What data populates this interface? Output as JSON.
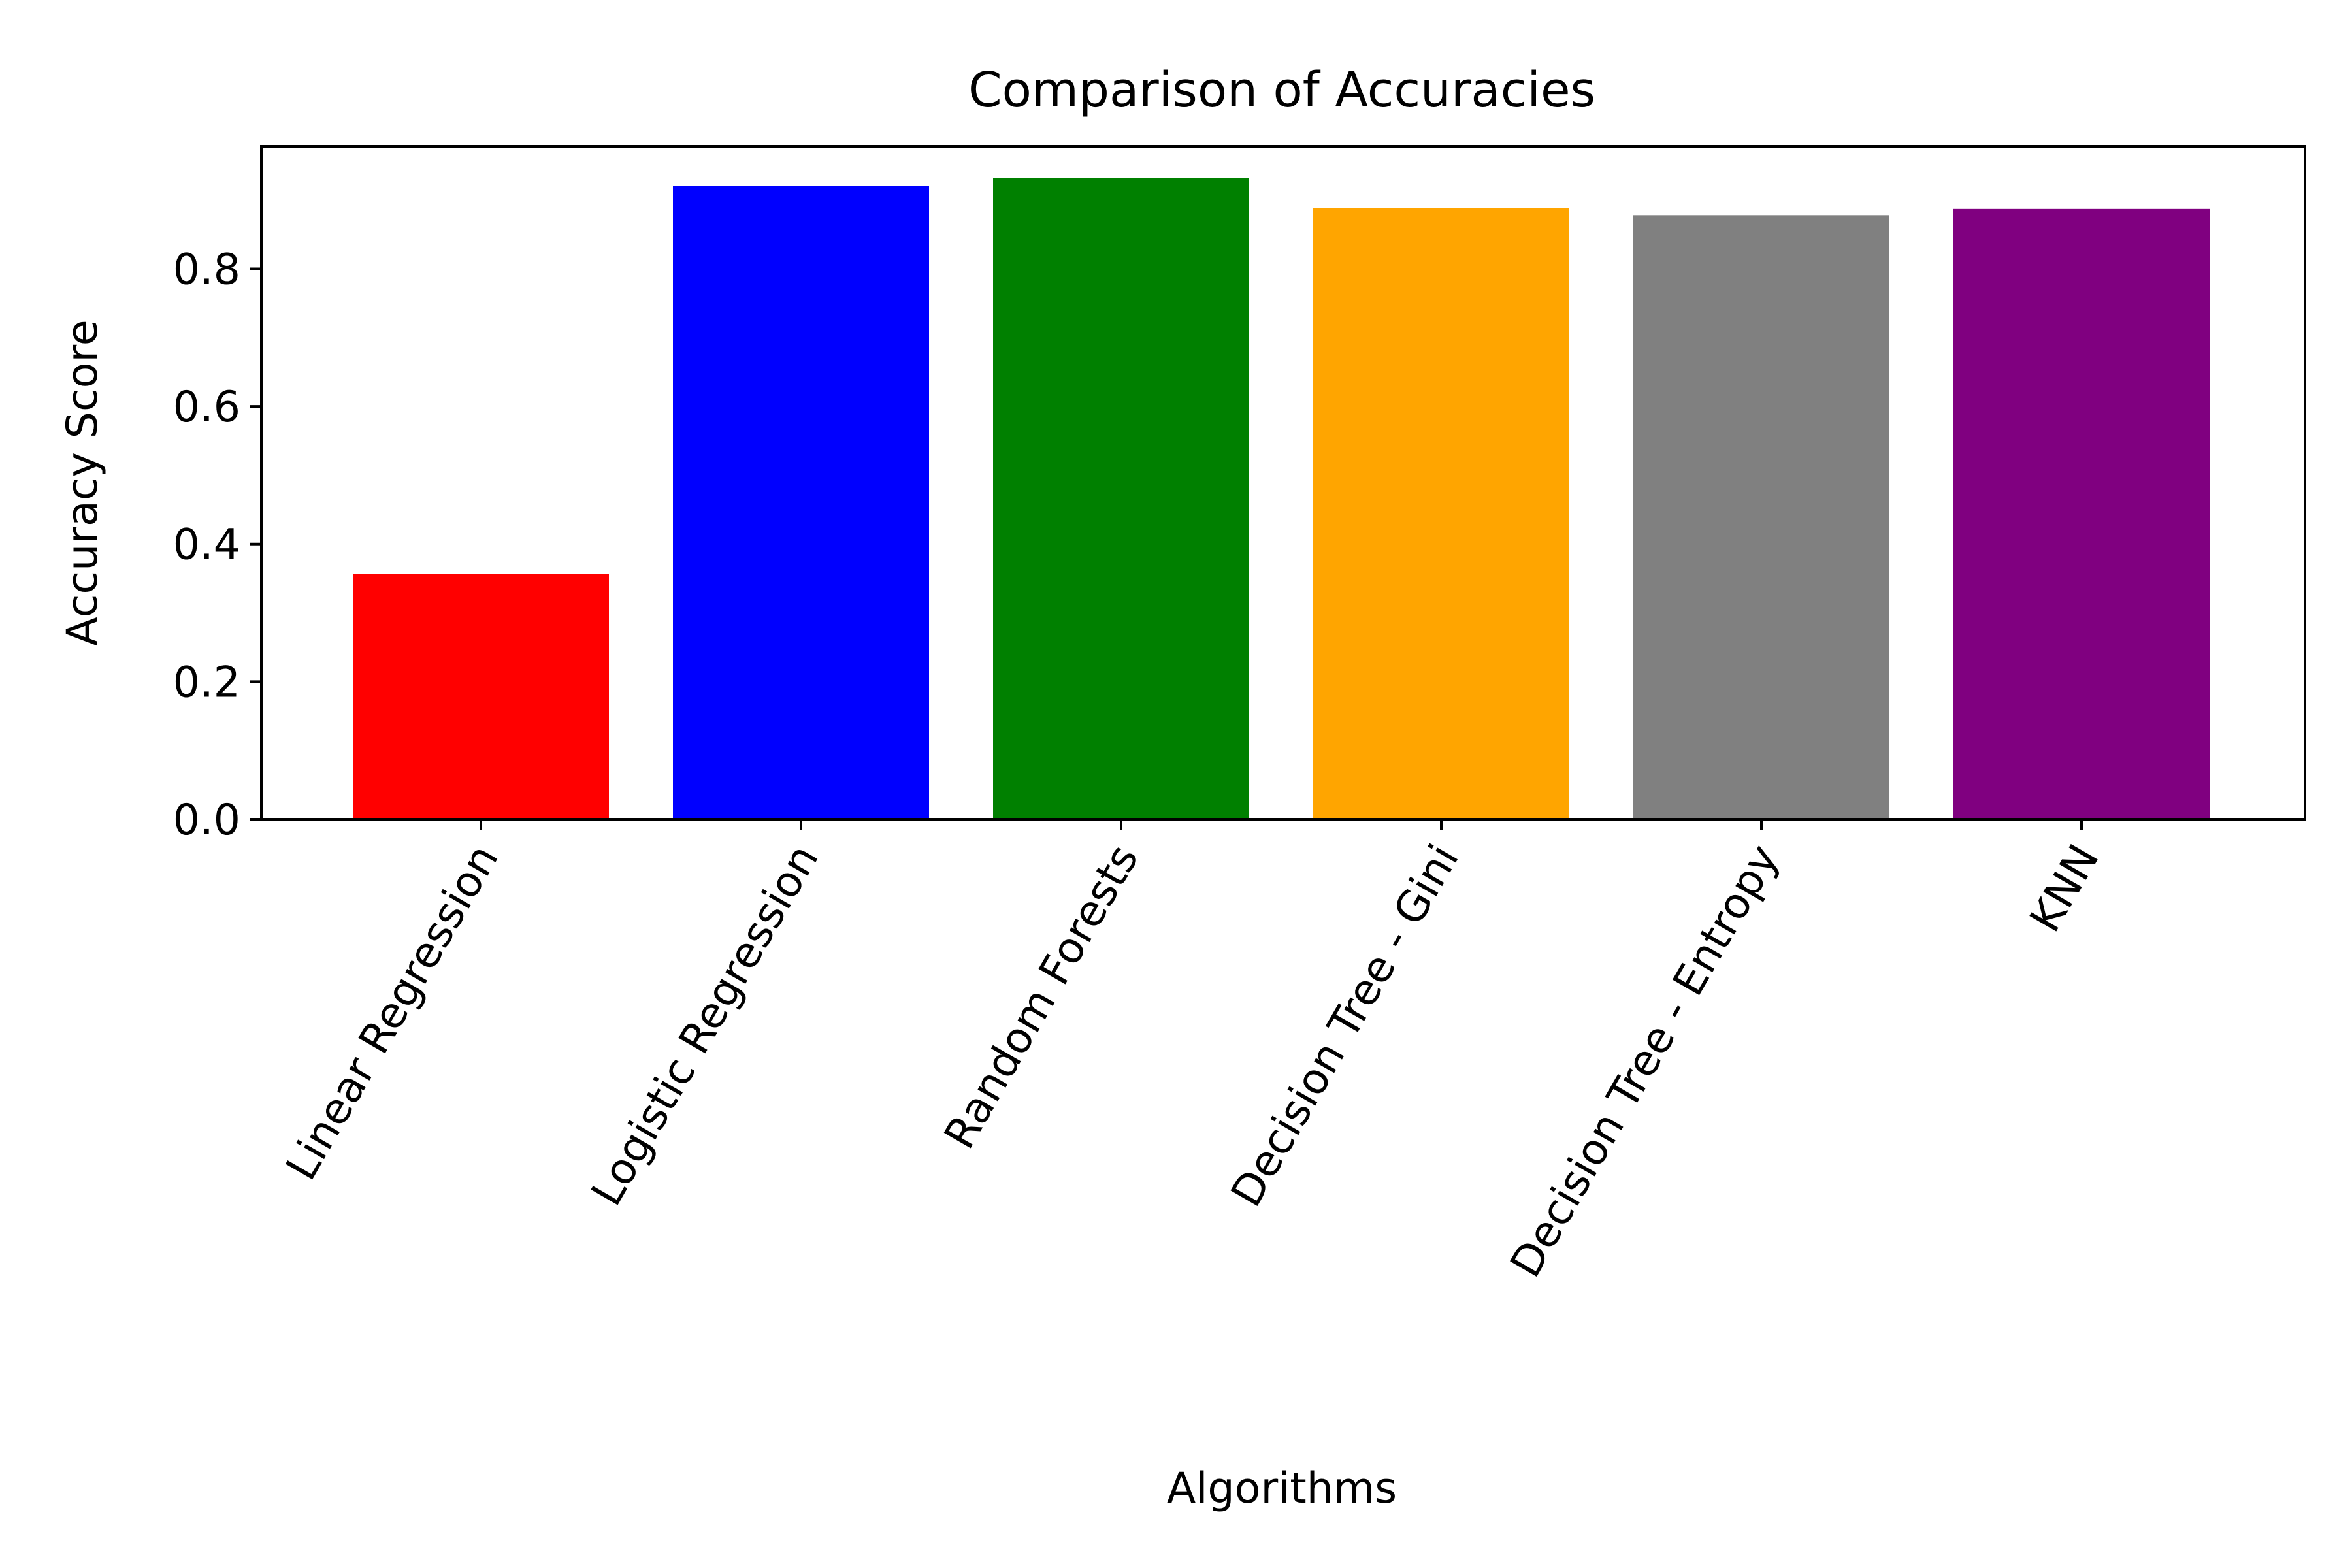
{
  "chart_data": {
    "type": "bar",
    "title": "Comparison of Accuracies",
    "xlabel": "Algorithms",
    "ylabel": "Accuracy Score",
    "categories": [
      "Linear Regression",
      "Logistic Regression",
      "Random Forests",
      "Decision Tree - Gini",
      "Decision Tree - Entropy",
      "KNN"
    ],
    "values": [
      0.357,
      0.921,
      0.932,
      0.888,
      0.878,
      0.887
    ],
    "colors": [
      "#ff0000",
      "#0000ff",
      "#008000",
      "#ffa500",
      "#808080",
      "#800080"
    ],
    "ylim": [
      0,
      0.978
    ],
    "yticks": [
      0.0,
      0.2,
      0.4,
      0.6,
      0.8
    ],
    "ytick_labels": [
      "0.0",
      "0.2",
      "0.4",
      "0.6",
      "0.8"
    ],
    "xtick_rotation_deg": 60,
    "grid": false,
    "legend": "none"
  }
}
